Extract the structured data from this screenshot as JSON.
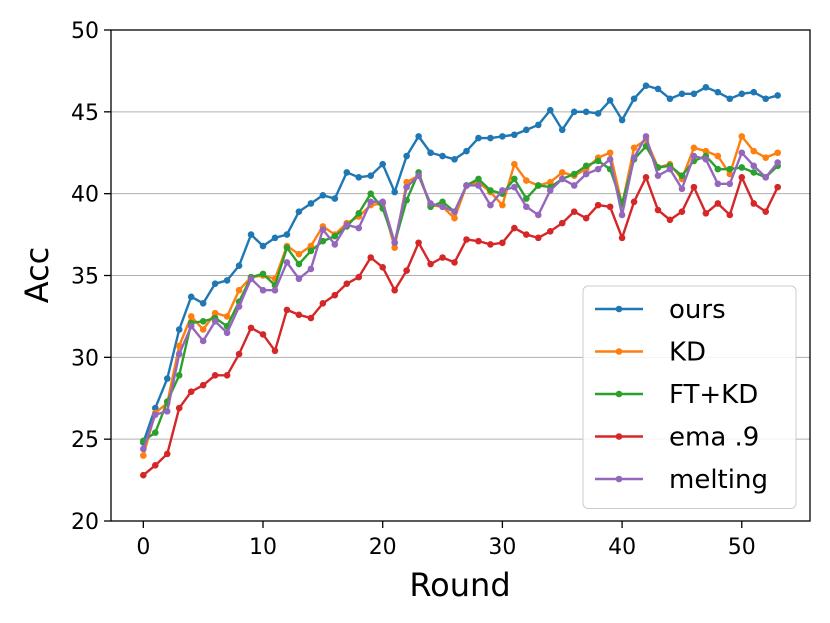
{
  "chart_data": {
    "type": "line",
    "xlabel": "Round",
    "ylabel": "Acc",
    "xlim": [
      -2.7,
      55.7
    ],
    "ylim": [
      20,
      50
    ],
    "xticks": [
      0,
      10,
      20,
      30,
      40,
      50
    ],
    "yticks": [
      20,
      25,
      30,
      35,
      40,
      45,
      50
    ],
    "ygrid": true,
    "legend_position": "bottom-right",
    "series": [
      {
        "name": "ours",
        "color": "#1f77b4",
        "values": [
          24.8,
          26.9,
          28.7,
          31.7,
          33.7,
          33.3,
          34.5,
          34.7,
          35.6,
          37.5,
          36.8,
          37.3,
          37.5,
          38.9,
          39.4,
          39.9,
          39.7,
          41.3,
          41.0,
          41.1,
          41.8,
          40.1,
          42.3,
          43.5,
          42.5,
          42.3,
          42.1,
          42.6,
          43.4,
          43.4,
          43.5,
          43.6,
          43.9,
          44.2,
          45.1,
          43.9,
          45.0,
          45.0,
          44.9,
          45.7,
          44.5,
          45.8,
          46.6,
          46.4,
          45.8,
          46.1,
          46.1,
          46.5,
          46.2,
          45.8,
          46.1,
          46.2,
          45.8,
          46.0
        ]
      },
      {
        "name": "KD",
        "color": "#ff7f0e",
        "values": [
          24.0,
          26.6,
          27.2,
          30.7,
          32.5,
          31.7,
          32.7,
          32.5,
          34.1,
          34.9,
          35.0,
          34.8,
          36.8,
          36.3,
          36.8,
          38.0,
          37.5,
          38.2,
          38.6,
          39.3,
          39.4,
          36.7,
          40.7,
          41.1,
          39.3,
          39.2,
          38.5,
          40.5,
          40.7,
          40.1,
          39.3,
          41.8,
          40.8,
          40.5,
          40.7,
          41.3,
          41.1,
          41.5,
          42.2,
          42.5,
          39.3,
          42.8,
          43.3,
          41.6,
          41.8,
          40.9,
          42.8,
          42.6,
          42.3,
          41.2,
          43.5,
          42.6,
          42.2,
          42.5
        ]
      },
      {
        "name": "FT+KD",
        "color": "#2ca02c",
        "values": [
          24.9,
          25.4,
          27.3,
          28.9,
          32.1,
          32.2,
          32.4,
          31.9,
          33.4,
          34.9,
          35.1,
          34.4,
          36.7,
          35.7,
          36.5,
          37.1,
          37.4,
          38.0,
          38.8,
          40.0,
          39.1,
          37.0,
          39.6,
          41.3,
          39.2,
          39.5,
          38.9,
          40.5,
          40.9,
          40.2,
          40.0,
          40.9,
          39.7,
          40.5,
          40.4,
          40.9,
          41.2,
          41.7,
          42.0,
          41.5,
          39.4,
          42.1,
          42.9,
          41.6,
          41.7,
          41.1,
          42.0,
          42.3,
          41.5,
          41.5,
          41.6,
          41.3,
          41.0,
          41.7
        ]
      },
      {
        "name": "ema .9",
        "color": "#d62728",
        "values": [
          22.8,
          23.4,
          24.1,
          26.9,
          27.9,
          28.3,
          28.9,
          28.9,
          30.2,
          31.8,
          31.4,
          30.4,
          32.9,
          32.6,
          32.4,
          33.3,
          33.8,
          34.5,
          34.9,
          36.1,
          35.5,
          34.1,
          35.3,
          37.0,
          35.7,
          36.1,
          35.8,
          37.2,
          37.1,
          36.9,
          37.0,
          37.9,
          37.5,
          37.3,
          37.7,
          38.2,
          38.9,
          38.5,
          39.3,
          39.2,
          37.3,
          39.5,
          41.0,
          39.0,
          38.4,
          38.9,
          40.4,
          38.8,
          39.4,
          38.7,
          41.0,
          39.4,
          38.9,
          40.4
        ]
      },
      {
        "name": "melting",
        "color": "#9467bd",
        "values": [
          24.4,
          26.5,
          26.7,
          30.2,
          31.9,
          31.0,
          32.2,
          31.5,
          33.1,
          34.8,
          34.1,
          34.1,
          35.8,
          34.8,
          35.4,
          37.8,
          36.9,
          38.1,
          37.9,
          39.5,
          39.5,
          37.0,
          40.4,
          41.1,
          39.4,
          39.2,
          38.9,
          40.5,
          40.5,
          39.3,
          40.2,
          40.4,
          39.2,
          38.7,
          40.2,
          40.9,
          40.5,
          41.2,
          41.5,
          42.1,
          38.7,
          42.2,
          43.5,
          41.1,
          41.5,
          40.3,
          42.3,
          42.1,
          40.6,
          40.6,
          42.5,
          41.7,
          41.0,
          41.9
        ]
      }
    ]
  }
}
